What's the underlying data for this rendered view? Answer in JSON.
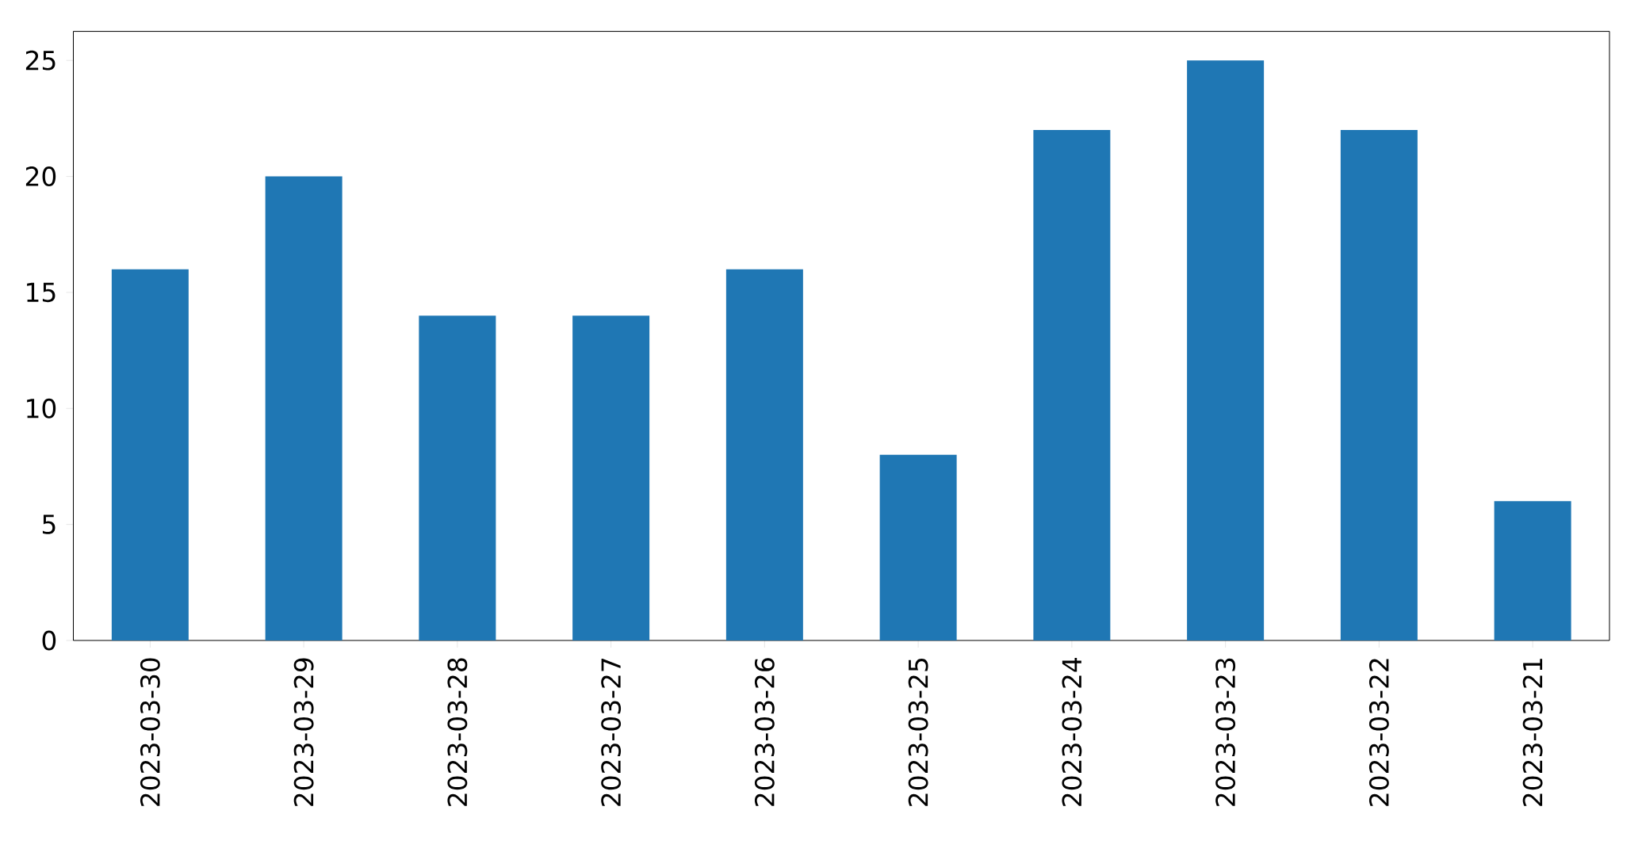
{
  "chart_data": {
    "type": "bar",
    "categories": [
      "2023-03-30",
      "2023-03-29",
      "2023-03-28",
      "2023-03-27",
      "2023-03-26",
      "2023-03-25",
      "2023-03-24",
      "2023-03-23",
      "2023-03-22",
      "2023-03-21"
    ],
    "values": [
      16,
      20,
      14,
      14,
      16,
      8,
      22,
      25,
      22,
      6
    ],
    "color": "#1f77b4",
    "ylim": [
      0,
      26.25
    ],
    "yticks": [
      0,
      5,
      10,
      15,
      20,
      25
    ],
    "grid": false
  }
}
